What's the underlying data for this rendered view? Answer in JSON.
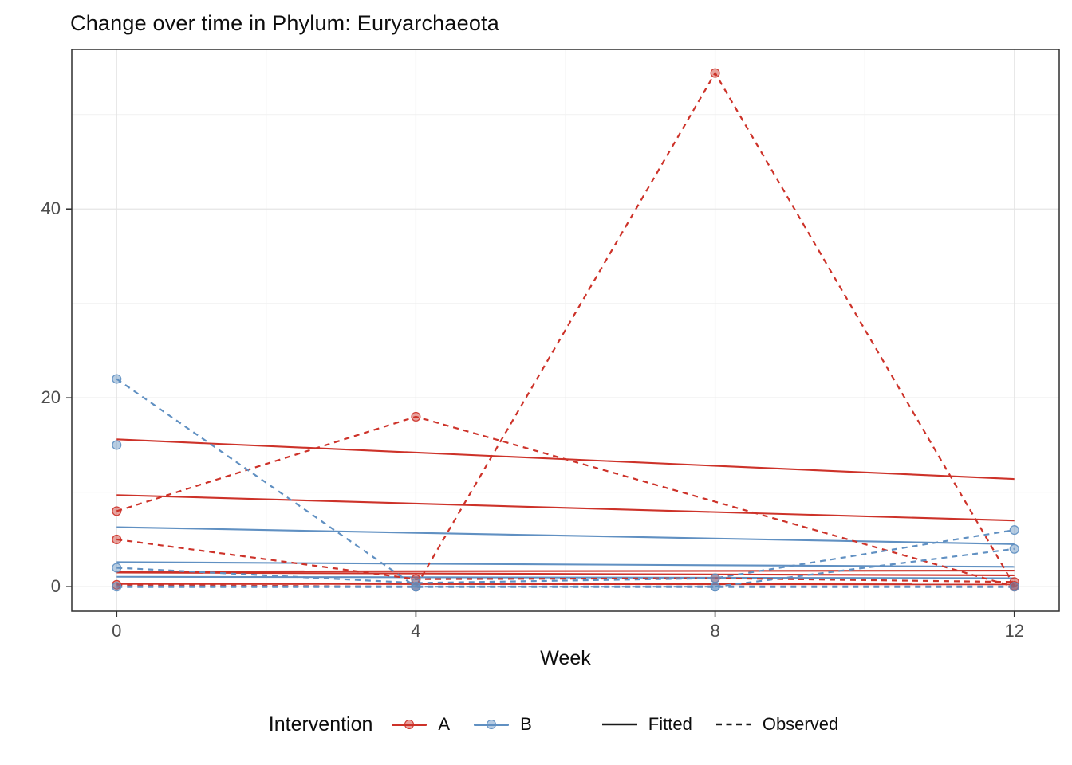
{
  "title": "Change over time in Phylum: Euryarchaeota",
  "axes": {
    "x": {
      "label": "Week",
      "tick_labels": [
        "0",
        "4",
        "8",
        "12"
      ],
      "tick_values": [
        0,
        4,
        8,
        12
      ],
      "minor_values": [
        2,
        6,
        10
      ],
      "range": [
        -0.6,
        12.6
      ]
    },
    "y": {
      "label": "",
      "tick_labels": [
        "0",
        "20",
        "40"
      ],
      "tick_values": [
        0,
        20,
        40
      ],
      "minor_values": [
        10,
        30,
        50
      ],
      "range": [
        -2.6,
        56.9
      ]
    }
  },
  "legend": {
    "title": "Intervention",
    "groups": [
      {
        "label": "A",
        "color": "#CD3229"
      },
      {
        "label": "B",
        "color": "#6090C2"
      }
    ],
    "linetypes": [
      {
        "label": "Fitted",
        "style": "solid"
      },
      {
        "label": "Observed",
        "style": "dashed"
      }
    ]
  },
  "colors": {
    "A": "#CD3229",
    "B": "#6090C2",
    "grid_major": "#e4e4e4",
    "grid_minor": "#f1f1f1",
    "panel_border": "#2f2f2f",
    "tick_mark": "#333333",
    "tick_text": "#4d4d4d",
    "legend_line": "#1a1a1a"
  },
  "chart_data": {
    "type": "line",
    "title": "Change over time in Phylum: Euryarchaeota",
    "xlabel": "Week",
    "ylabel": "",
    "xlim": [
      -0.6,
      12.6
    ],
    "ylim": [
      -2.6,
      56.9
    ],
    "grid": true,
    "legend_position": "bottom",
    "series": [
      {
        "name": "A-fitted-1",
        "group": "A",
        "kind": "fitted",
        "x": [
          0,
          12
        ],
        "y": [
          15.6,
          11.4
        ]
      },
      {
        "name": "A-fitted-2",
        "group": "A",
        "kind": "fitted",
        "x": [
          0,
          12
        ],
        "y": [
          9.7,
          7.0
        ]
      },
      {
        "name": "A-fitted-3",
        "group": "A",
        "kind": "fitted",
        "x": [
          0,
          12
        ],
        "y": [
          1.6,
          1.7
        ]
      },
      {
        "name": "A-fitted-4",
        "group": "A",
        "kind": "fitted",
        "x": [
          0,
          12
        ],
        "y": [
          1.5,
          1.2
        ]
      },
      {
        "name": "A-fitted-5",
        "group": "A",
        "kind": "fitted",
        "x": [
          0,
          12
        ],
        "y": [
          0.3,
          0.25
        ]
      },
      {
        "name": "B-fitted-1",
        "group": "B",
        "kind": "fitted",
        "x": [
          0,
          12
        ],
        "y": [
          6.3,
          4.5
        ]
      },
      {
        "name": "B-fitted-2",
        "group": "B",
        "kind": "fitted",
        "x": [
          0,
          12
        ],
        "y": [
          2.6,
          2.1
        ]
      },
      {
        "name": "B-fitted-3",
        "group": "B",
        "kind": "fitted",
        "x": [
          0,
          12
        ],
        "y": [
          1.05,
          0.9
        ]
      },
      {
        "name": "A-observed-1",
        "group": "A",
        "kind": "observed",
        "x": [
          0,
          4,
          12
        ],
        "y": [
          8,
          18,
          0
        ]
      },
      {
        "name": "A-observed-2",
        "group": "A",
        "kind": "observed",
        "x": [
          0,
          4,
          8,
          12
        ],
        "y": [
          5,
          0.8,
          0.9,
          0.5
        ]
      },
      {
        "name": "A-observed-3",
        "group": "A",
        "kind": "observed",
        "x": [
          0,
          4,
          8,
          12
        ],
        "y": [
          0.2,
          0,
          54.4,
          0.1
        ]
      },
      {
        "name": "B-observed-1",
        "group": "B",
        "kind": "observed",
        "x": [
          0,
          4,
          8,
          12
        ],
        "y": [
          22,
          0,
          0,
          4
        ]
      },
      {
        "name": "B-observed-2",
        "group": "B",
        "kind": "observed",
        "x": [
          0
        ],
        "y": [
          15
        ]
      },
      {
        "name": "B-observed-3",
        "group": "B",
        "kind": "observed",
        "x": [
          0,
          4,
          8,
          12
        ],
        "y": [
          2,
          0.4,
          0.9,
          6
        ]
      },
      {
        "name": "B-observed-4",
        "group": "B",
        "kind": "observed",
        "x": [
          0,
          4,
          8,
          12
        ],
        "y": [
          0,
          0,
          0,
          0
        ],
        "thick": true
      }
    ]
  }
}
